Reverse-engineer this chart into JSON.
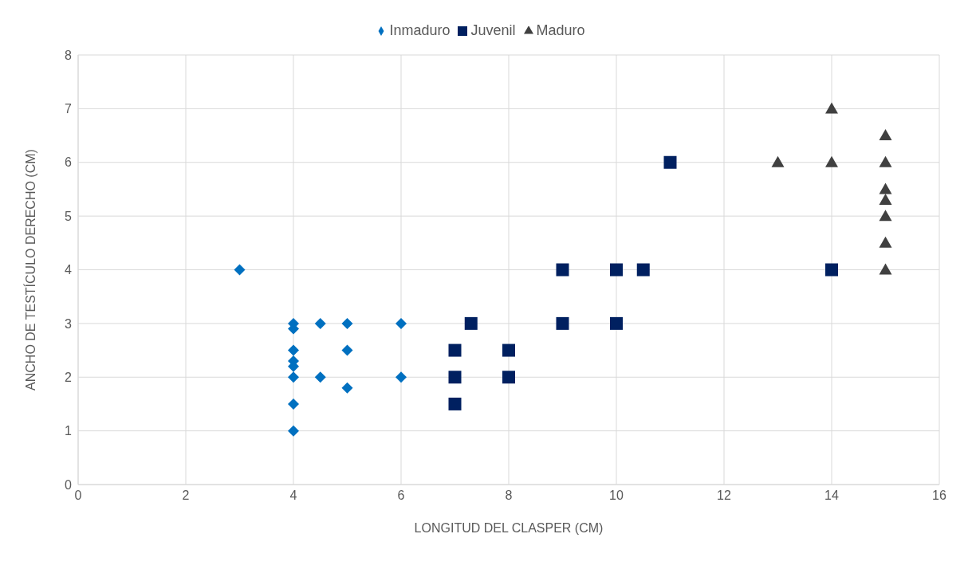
{
  "chart_data": {
    "type": "scatter",
    "xlabel": "LONGITUD DEL CLASPER (CM)",
    "ylabel": "ANCHO DE TESTÍCULO DERECHO (CM)",
    "xlim": [
      0,
      16
    ],
    "xticks": [
      0,
      2,
      4,
      6,
      8,
      10,
      12,
      14,
      16
    ],
    "ylim": [
      0,
      8
    ],
    "yticks": [
      0,
      1,
      2,
      3,
      4,
      5,
      6,
      7,
      8
    ],
    "grid": true,
    "legend": "top",
    "series": [
      {
        "name": "Inmaduro",
        "color": "#0070c0",
        "marker": "diamond",
        "x": [
          3,
          4,
          4,
          4,
          4,
          4,
          4,
          4,
          4,
          4.5,
          4.5,
          5,
          5,
          5,
          6,
          6
        ],
        "values": [
          4,
          3,
          2.9,
          2.5,
          2.3,
          2.2,
          2,
          1.5,
          1,
          3,
          2,
          3,
          2.5,
          1.8,
          3,
          2
        ]
      },
      {
        "name": "Juvenil",
        "color": "#002060",
        "marker": "square",
        "x": [
          7,
          7,
          7,
          7.3,
          8,
          8,
          9,
          9,
          10,
          10,
          10.5,
          11,
          14
        ],
        "values": [
          2.5,
          2,
          1.5,
          3,
          2.5,
          2,
          4,
          3,
          4,
          3,
          4,
          6,
          4
        ]
      },
      {
        "name": "Maduro",
        "color": "#404040",
        "marker": "triangle",
        "x": [
          13,
          14,
          14,
          15,
          15,
          15,
          15,
          15,
          15,
          15
        ],
        "values": [
          6,
          7,
          6,
          6.5,
          6,
          5.5,
          5.3,
          5,
          4.5,
          4
        ]
      }
    ]
  }
}
